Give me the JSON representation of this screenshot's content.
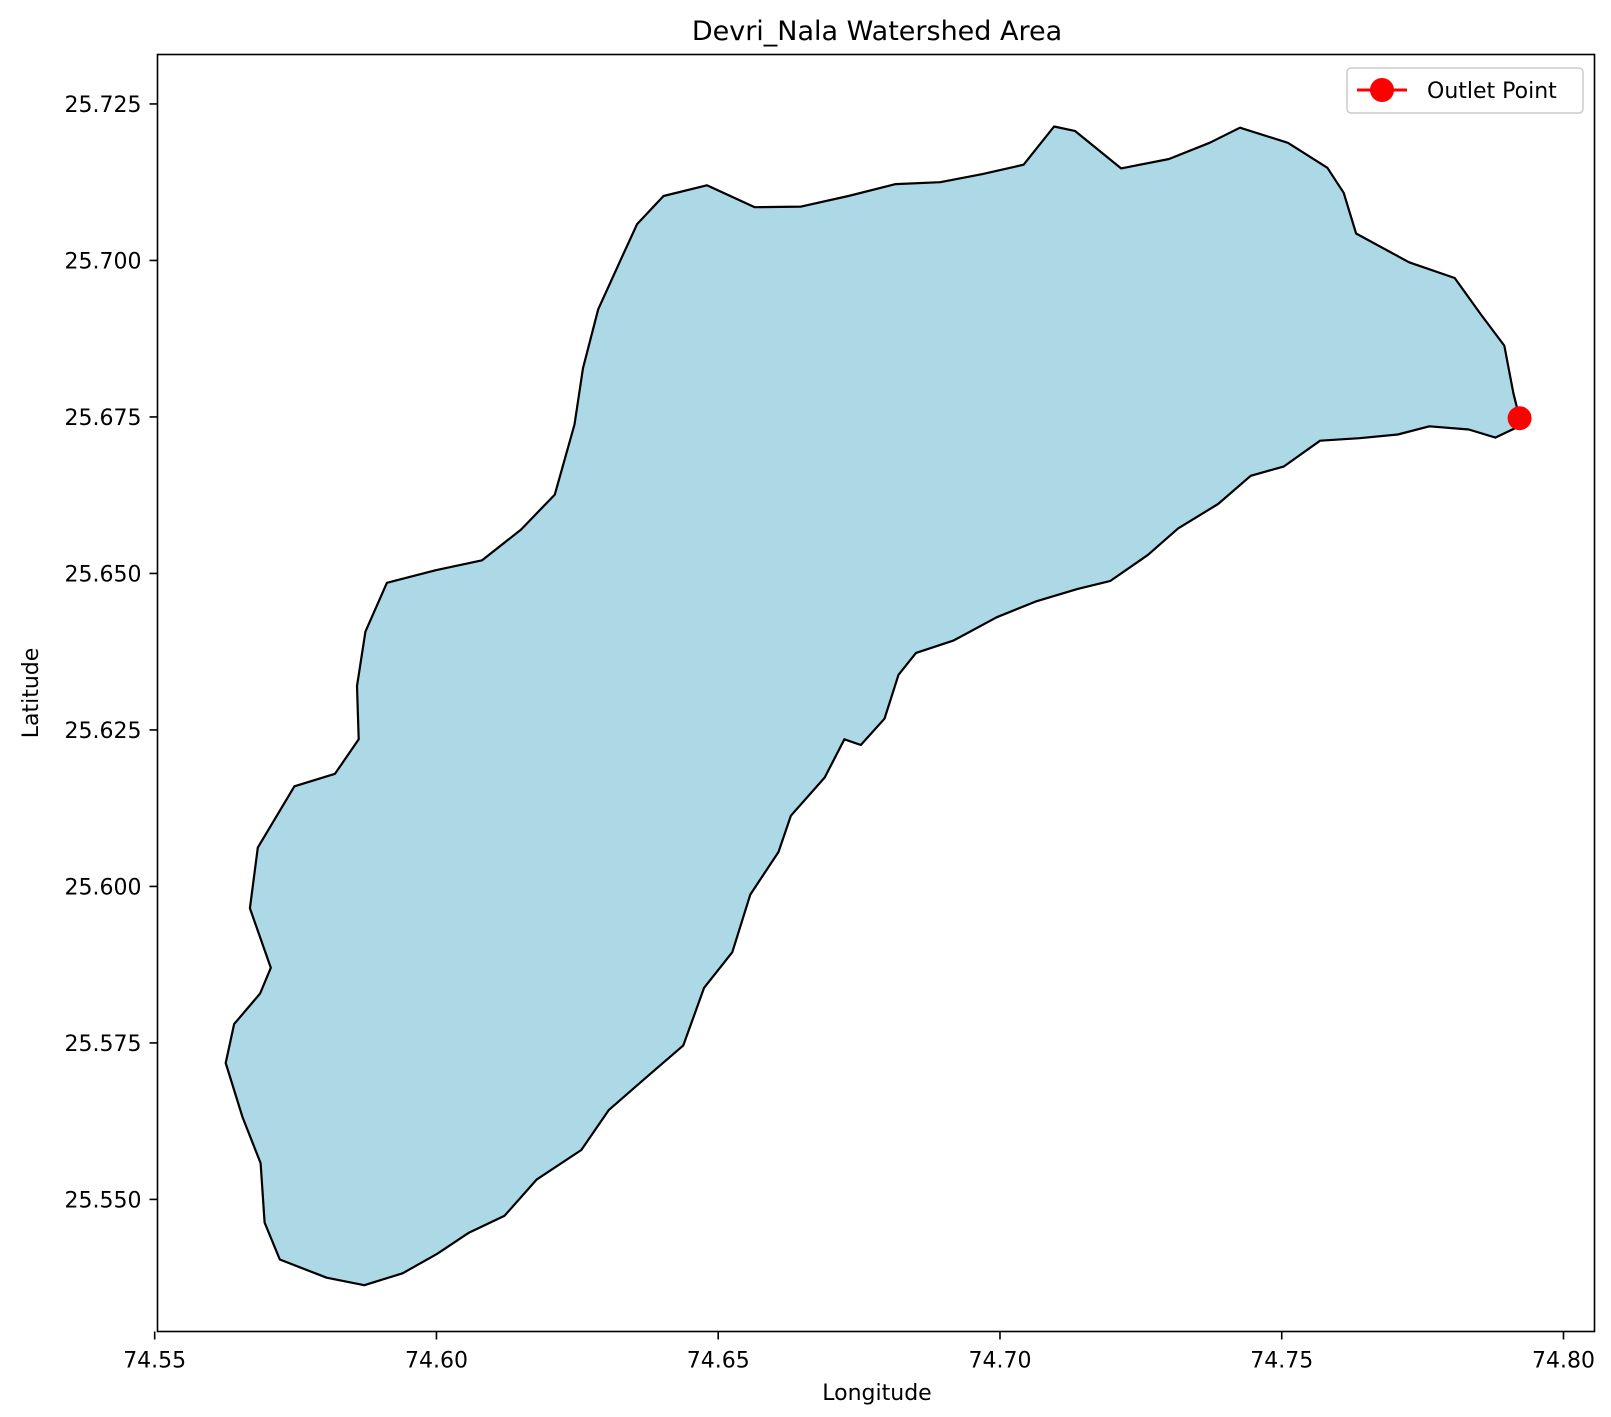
{
  "chart_data": {
    "type": "map",
    "title": "Devri_Nala Watershed Area",
    "xlabel": "Longitude",
    "ylabel": "Latitude",
    "xlim": [
      74.5505,
      74.8055
    ],
    "ylim": [
      25.5289,
      25.7329
    ],
    "x_ticks": [
      74.55,
      74.6,
      74.65,
      74.7,
      74.75,
      74.8
    ],
    "x_tick_labels": [
      "74.55",
      "74.60",
      "74.65",
      "74.70",
      "74.75",
      "74.80"
    ],
    "y_ticks": [
      25.55,
      25.575,
      25.6,
      25.625,
      25.65,
      25.675,
      25.7,
      25.725
    ],
    "y_tick_labels": [
      "25.550",
      "25.575",
      "25.600",
      "25.625",
      "25.650",
      "25.675",
      "25.700",
      "25.725"
    ],
    "grid": false,
    "legend_position": "top-right",
    "fill_color": "#add8e6",
    "edge_color": "#000000",
    "marker_color": "#ff0000",
    "watershed_boundary": [
      [
        74.5872,
        25.5363
      ],
      [
        74.594,
        25.5382
      ],
      [
        74.6001,
        25.5413
      ],
      [
        74.6058,
        25.5447
      ],
      [
        74.6121,
        25.5474
      ],
      [
        74.6178,
        25.5532
      ],
      [
        74.6257,
        25.5579
      ],
      [
        74.6306,
        25.5643
      ],
      [
        74.6375,
        25.5697
      ],
      [
        74.6438,
        25.5746
      ],
      [
        74.6475,
        25.5838
      ],
      [
        74.6525,
        25.5895
      ],
      [
        74.6557,
        25.5987
      ],
      [
        74.6607,
        25.6055
      ],
      [
        74.6629,
        25.6113
      ],
      [
        74.6689,
        25.6174
      ],
      [
        74.6724,
        25.6235
      ],
      [
        74.6753,
        25.6226
      ],
      [
        74.6795,
        25.6268
      ],
      [
        74.682,
        25.6338
      ],
      [
        74.6851,
        25.6373
      ],
      [
        74.6918,
        25.6393
      ],
      [
        74.6994,
        25.643
      ],
      [
        74.7063,
        25.6455
      ],
      [
        74.7137,
        25.6475
      ],
      [
        74.7196,
        25.6488
      ],
      [
        74.7263,
        25.653
      ],
      [
        74.7316,
        25.6572
      ],
      [
        74.7387,
        25.6611
      ],
      [
        74.7445,
        25.6656
      ],
      [
        74.7504,
        25.6671
      ],
      [
        74.7568,
        25.6712
      ],
      [
        74.7638,
        25.6716
      ],
      [
        74.7706,
        25.6722
      ],
      [
        74.7762,
        25.6735
      ],
      [
        74.7832,
        25.673
      ],
      [
        74.7879,
        25.6717
      ],
      [
        74.7914,
        25.6732
      ],
      [
        74.7922,
        25.6748
      ],
      [
        74.7911,
        25.6788
      ],
      [
        74.7895,
        25.6864
      ],
      [
        74.7854,
        25.6913
      ],
      [
        74.7807,
        25.6972
      ],
      [
        74.7726,
        25.6997
      ],
      [
        74.7632,
        25.7043
      ],
      [
        74.761,
        25.7108
      ],
      [
        74.7581,
        25.7148
      ],
      [
        74.7511,
        25.7188
      ],
      [
        74.7426,
        25.7212
      ],
      [
        74.7372,
        25.7188
      ],
      [
        74.73,
        25.7162
      ],
      [
        74.7215,
        25.7147
      ],
      [
        74.7133,
        25.7207
      ],
      [
        74.7096,
        25.7214
      ],
      [
        74.7042,
        25.7153
      ],
      [
        74.6969,
        25.7138
      ],
      [
        74.6894,
        25.7125
      ],
      [
        74.6815,
        25.7122
      ],
      [
        74.6731,
        25.7103
      ],
      [
        74.6647,
        25.7086
      ],
      [
        74.6565,
        25.7085
      ],
      [
        74.648,
        25.712
      ],
      [
        74.6403,
        25.7103
      ],
      [
        74.6356,
        25.7058
      ],
      [
        74.633,
        25.7007
      ],
      [
        74.6287,
        25.6922
      ],
      [
        74.626,
        25.6828
      ],
      [
        74.6245,
        25.6738
      ],
      [
        74.621,
        25.6626
      ],
      [
        74.615,
        25.657
      ],
      [
        74.6081,
        25.6521
      ],
      [
        74.5998,
        25.6505
      ],
      [
        74.5912,
        25.6485
      ],
      [
        74.5874,
        25.6407
      ],
      [
        74.5859,
        25.632
      ],
      [
        74.5862,
        25.6235
      ],
      [
        74.582,
        25.618
      ],
      [
        74.5748,
        25.616
      ],
      [
        74.5683,
        25.6062
      ],
      [
        74.5669,
        25.5965
      ],
      [
        74.5706,
        25.587
      ],
      [
        74.5687,
        25.5829
      ],
      [
        74.5641,
        25.578
      ],
      [
        74.5626,
        25.5718
      ],
      [
        74.5656,
        25.5631
      ],
      [
        74.5688,
        25.5558
      ],
      [
        74.5695,
        25.5463
      ],
      [
        74.5722,
        25.5404
      ],
      [
        74.5805,
        25.5375
      ]
    ],
    "outlet_point": {
      "name": "Outlet Point",
      "lon": 74.7922,
      "lat": 25.6748
    }
  }
}
